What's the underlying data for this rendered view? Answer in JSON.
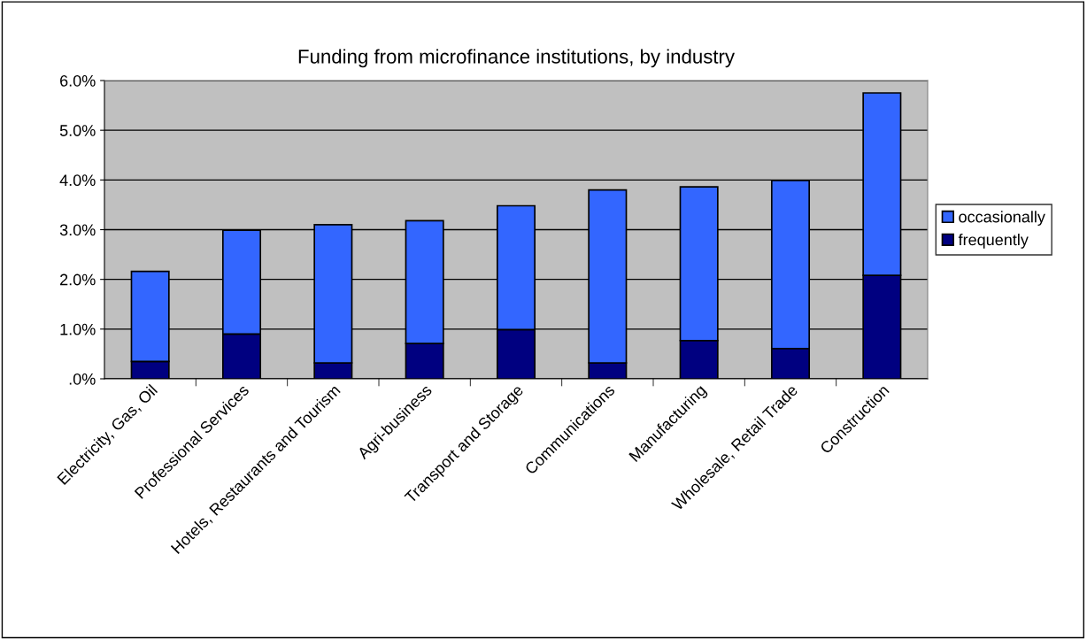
{
  "chart_data": {
    "type": "bar",
    "title": "Funding from microfinance institutions, by industry",
    "categories": [
      "Electricity, Gas, Oil",
      "Professional Services",
      "Hotels, Restaurants and Tourism",
      "Agri-business",
      "Transport and Storage",
      "Communications",
      "Manufacturing",
      "Wholesale, Retail Trade",
      "Construction"
    ],
    "stacked": true,
    "series": [
      {
        "name": "frequently",
        "color": "#000080",
        "values": [
          0.35,
          0.9,
          0.32,
          0.71,
          0.99,
          0.32,
          0.77,
          0.61,
          2.08
        ]
      },
      {
        "name": "occasionally",
        "color": "#3366ff",
        "values": [
          1.81,
          2.09,
          2.78,
          2.47,
          2.49,
          3.48,
          3.09,
          3.38,
          3.67
        ]
      }
    ],
    "ylim": [
      0,
      6
    ],
    "yticks": [
      {
        "value": 0,
        "label": ".0%"
      },
      {
        "value": 1,
        "label": "1.0%"
      },
      {
        "value": 2,
        "label": "2.0%"
      },
      {
        "value": 3,
        "label": "3.0%"
      },
      {
        "value": 4,
        "label": "4.0%"
      },
      {
        "value": 5,
        "label": "5.0%"
      },
      {
        "value": 6,
        "label": "6.0%"
      }
    ],
    "grid": "y",
    "legend": "right"
  }
}
